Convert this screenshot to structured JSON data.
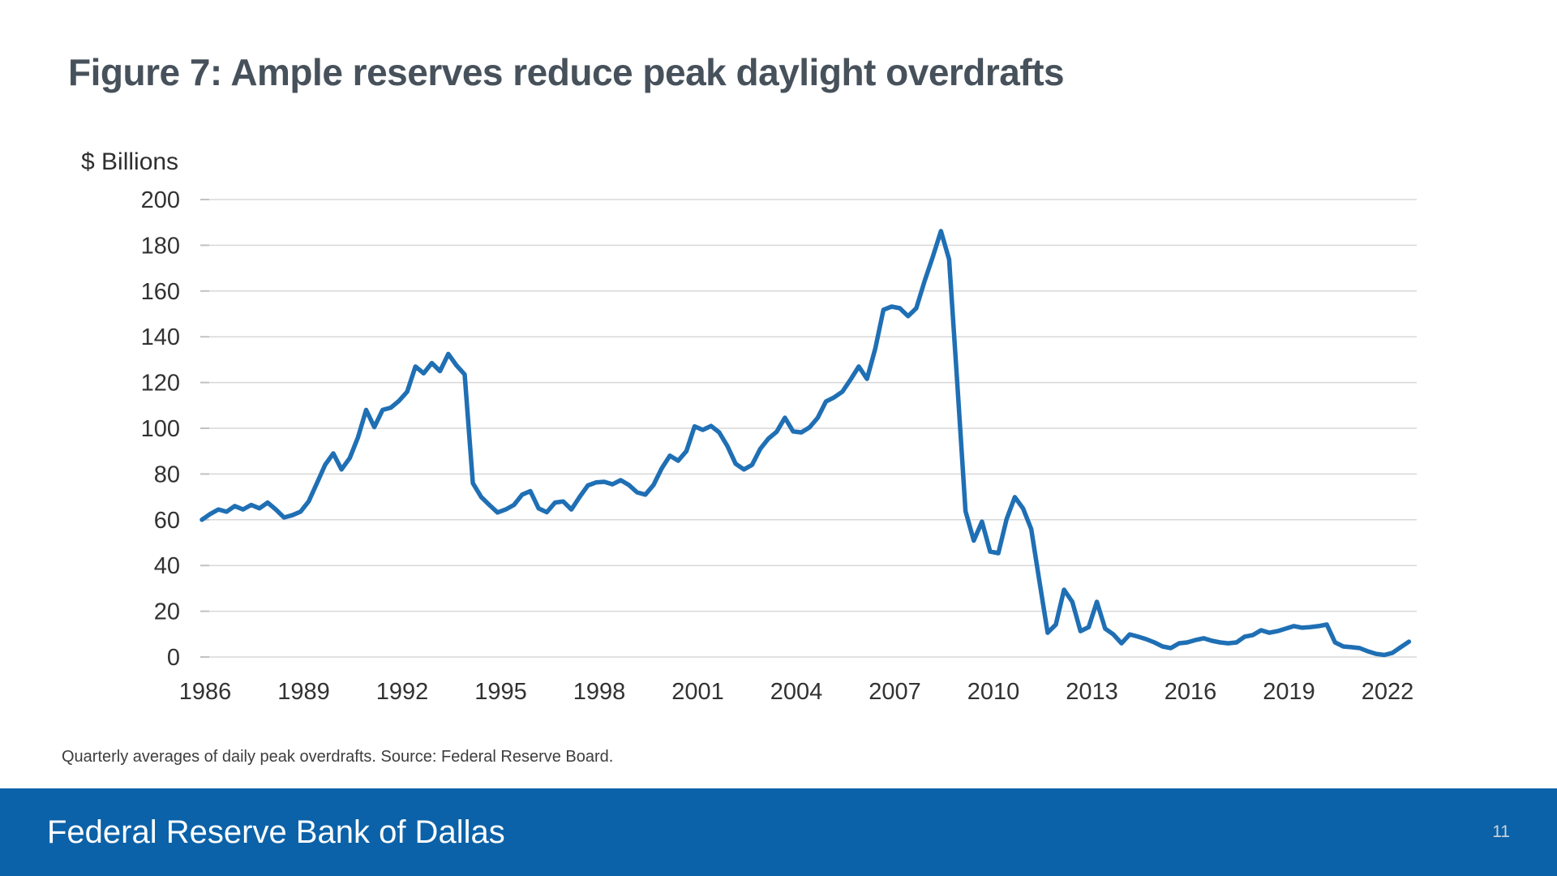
{
  "header": {
    "title": "Figure 7: Ample reserves reduce peak daylight overdrafts"
  },
  "footnote": {
    "text": "Quarterly averages of daily peak overdrafts. Source: Federal Reserve Board."
  },
  "footer": {
    "bank_name": "Federal Reserve Bank of Dallas",
    "page_number": "11"
  },
  "colors": {
    "line": "#1f6fb4",
    "footer_bar": "#0b62a8",
    "title_text": "#47515b",
    "gridline": "#d8d8d8",
    "tick_nub": "#c2c2c2",
    "axis_text": "#323232"
  },
  "chart_data": {
    "type": "line",
    "title": "Figure 7: Ample reserves reduce peak daylight overdrafts",
    "xlabel": "",
    "ylabel": "$ Billions",
    "ylim": [
      0,
      200
    ],
    "y_ticks": [
      0,
      20,
      40,
      60,
      80,
      100,
      120,
      140,
      160,
      180,
      200
    ],
    "x_ticks": [
      1986,
      1989,
      1992,
      1995,
      1998,
      2001,
      2004,
      2007,
      2010,
      2013,
      2016,
      2019,
      2022
    ],
    "grid": true,
    "legend_position": "none",
    "frequency": "quarterly",
    "start_year": 1986,
    "end_year": 2022,
    "series": [
      {
        "name": "Quarterly average of daily peak daylight overdrafts ($ billions)",
        "values": [
          60,
          62.5,
          64.5,
          63.5,
          66,
          64.5,
          66.5,
          65,
          67.5,
          64.5,
          61,
          62,
          63.5,
          68,
          76,
          84,
          89,
          82,
          87,
          96,
          108,
          100.5,
          108,
          109,
          112,
          116,
          127,
          124,
          128.5,
          125,
          132.5,
          127.5,
          123.5,
          76,
          70,
          66.5,
          63.2,
          64.5,
          66.5,
          71,
          72.5,
          65,
          63.3,
          67.5,
          68,
          64.5,
          70,
          75,
          76.3,
          76.6,
          75.5,
          77.3,
          75.2,
          72,
          71,
          75.2,
          82.5,
          88,
          85.8,
          90,
          100.8,
          99.3,
          101,
          98.2,
          92.2,
          84.5,
          82,
          84,
          91,
          95.5,
          98.5,
          104.6,
          98.6,
          98.2,
          100.4,
          104.6,
          111.7,
          113.5,
          116,
          121.3,
          127,
          121.6,
          134.8,
          151.8,
          153.2,
          152.5,
          149,
          152.5,
          164.2,
          174.8,
          186.2,
          173.8,
          119.5,
          63.8,
          50.9,
          59.2,
          46.1,
          45.4,
          60.3,
          69.9,
          65,
          56,
          33,
          10.6,
          14.2,
          29.4,
          24.1,
          11.3,
          13.1,
          24.1,
          12.4,
          9.9,
          6,
          9.9,
          8.9,
          7.8,
          6.4,
          4.6,
          3.9,
          6,
          6.4,
          7.4,
          8.2,
          7.1,
          6.4,
          6,
          6.4,
          8.9,
          9.6,
          11.7,
          10.6,
          11.3,
          12.4,
          13.5,
          12.8,
          13.1,
          13.5,
          14.2,
          6.4,
          4.6,
          4.3,
          3.9,
          2.5,
          1.4,
          0.9,
          1.8,
          4.3,
          6.7
        ]
      }
    ]
  }
}
